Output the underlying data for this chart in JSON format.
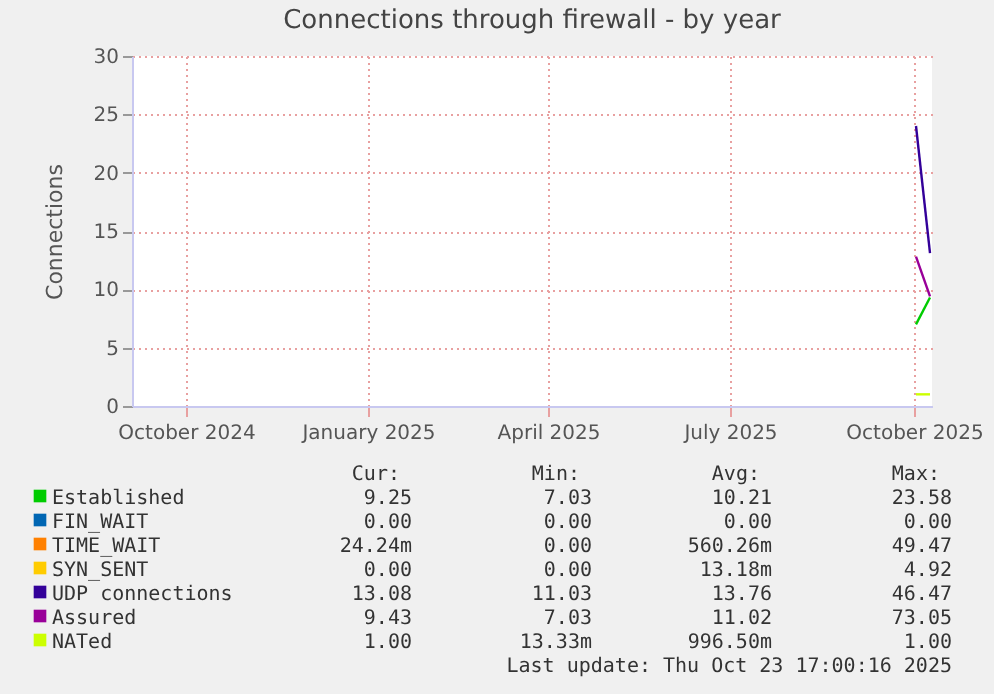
{
  "chart_data": {
    "type": "line",
    "title": "Connections through firewall - by year",
    "ylabel": "Connections",
    "x": [
      "2025-10-16",
      "2025-10-23"
    ],
    "xlim": [
      "2024-09-19",
      "2025-10-24"
    ],
    "xticks": [
      {
        "value": "2024-10-16",
        "label": "October 2024"
      },
      {
        "value": "2025-01-15",
        "label": "January 2025"
      },
      {
        "value": "2025-04-15",
        "label": "April 2025"
      },
      {
        "value": "2025-07-15",
        "label": "July 2025"
      },
      {
        "value": "2025-10-15",
        "label": "October 2025"
      }
    ],
    "ylim": [
      0,
      30
    ],
    "yticks": [
      0,
      5,
      10,
      15,
      20,
      25,
      30
    ],
    "grid": true,
    "legend": "bottom",
    "series": [
      {
        "name": "Established",
        "color": "#00cc00",
        "values": [
          7,
          9.3
        ]
      },
      {
        "name": "FIN_WAIT",
        "color": "#0066b3",
        "values": [
          null,
          null
        ]
      },
      {
        "name": "TIME_WAIT",
        "color": "#ff8000",
        "values": [
          null,
          null
        ]
      },
      {
        "name": "SYN_SENT",
        "color": "#ffcc00",
        "values": [
          null,
          null
        ]
      },
      {
        "name": "UDP connections",
        "color": "#330099",
        "values": [
          24,
          13.1
        ]
      },
      {
        "name": "Assured",
        "color": "#990099",
        "values": [
          12.8,
          9.4
        ]
      },
      {
        "name": "NATed",
        "color": "#ccff00",
        "values": [
          1,
          1
        ]
      }
    ],
    "annotations": [
      "Cur:",
      "Min:",
      "Avg:",
      "Max:",
      "9.25",
      "7.03",
      "10.21",
      "23.58",
      "0.00",
      "0.00",
      "0.00",
      "0.00",
      "24.24m",
      "0.00",
      "560.26m",
      "49.47",
      "0.00",
      "0.00",
      "13.18m",
      "4.92",
      "13.08",
      "11.03",
      "13.76",
      "46.47",
      "9.43",
      "7.03",
      "11.02",
      "73.05",
      "1.00",
      "13.33m",
      "996.50m",
      "1.00",
      "Last update: Thu Oct 23 17:00:16 2025"
    ]
  }
}
